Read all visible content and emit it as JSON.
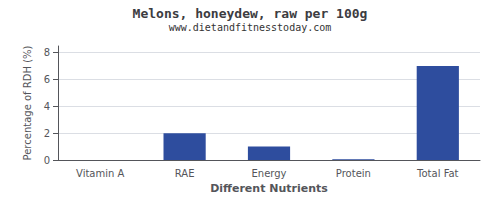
{
  "chart_data": {
    "type": "bar",
    "title": "Melons, honeydew, raw per 100g",
    "subtitle": "www.dietandfitnesstoday.com",
    "xlabel": "Different Nutrients",
    "ylabel": "Percentage of RDH (%)",
    "categories": [
      "Vitamin A",
      "RAE",
      "Energy",
      "Protein",
      "Total Fat"
    ],
    "values": [
      0.0,
      2.0,
      1.0,
      0.05,
      7.0
    ],
    "color": "#2e4d9e",
    "ylim": [
      0,
      8.5
    ],
    "yticks": [
      0,
      2,
      4,
      6,
      8
    ],
    "grid": true
  }
}
